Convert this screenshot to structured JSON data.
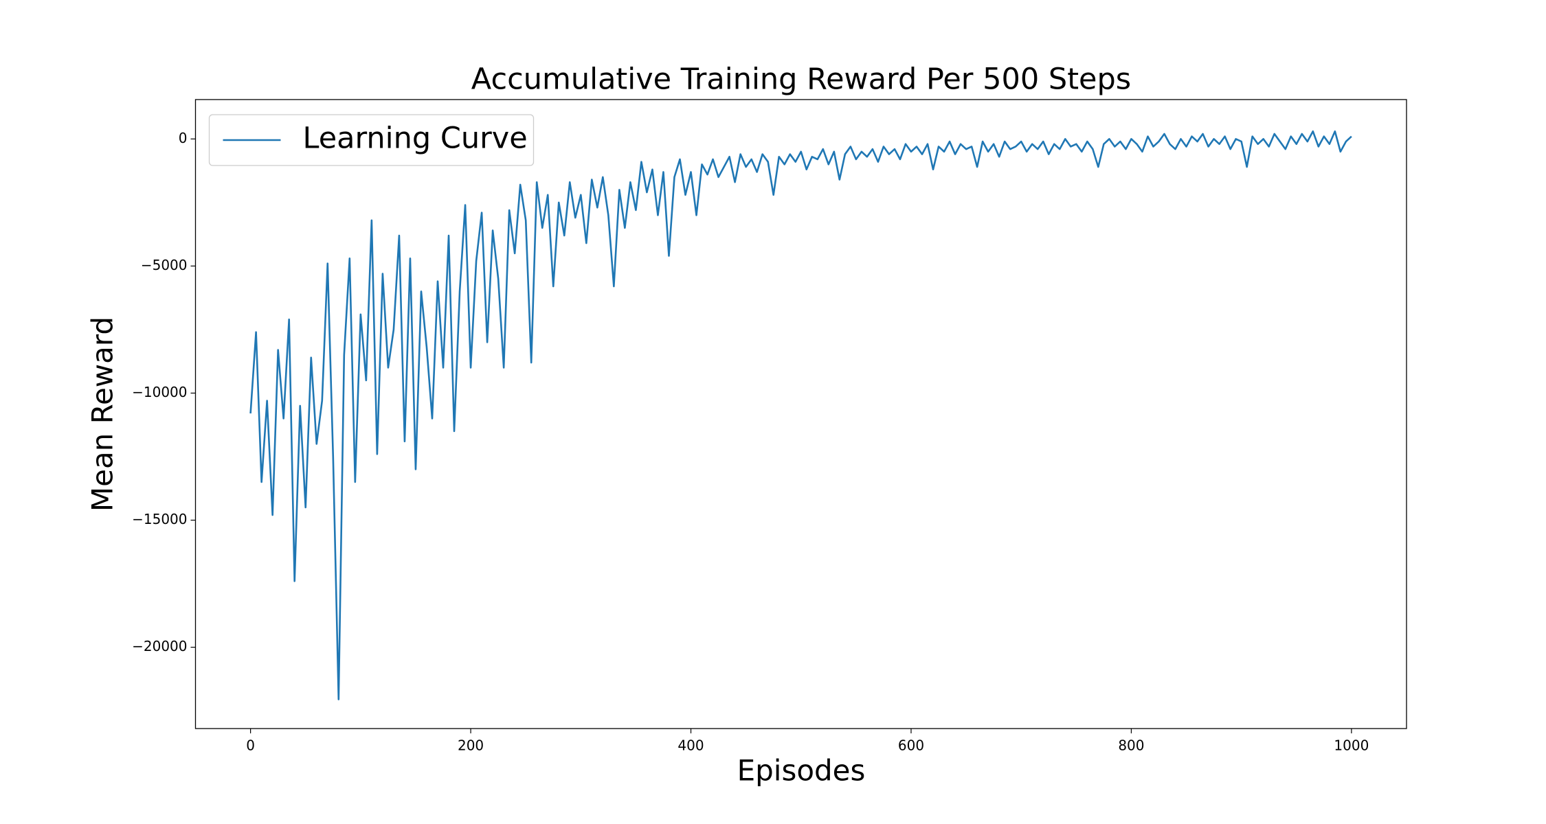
{
  "chart_data": {
    "type": "line",
    "title": "Accumulative Training Reward Per 500 Steps",
    "x_label": "Episodes",
    "y_label": "Mean Reward",
    "x": [
      0,
      5,
      10,
      15,
      20,
      25,
      30,
      35,
      40,
      45,
      50,
      55,
      60,
      65,
      70,
      75,
      80,
      85,
      90,
      95,
      100,
      105,
      110,
      115,
      120,
      125,
      130,
      135,
      140,
      145,
      150,
      155,
      160,
      165,
      170,
      175,
      180,
      185,
      190,
      195,
      200,
      205,
      210,
      215,
      220,
      225,
      230,
      235,
      240,
      245,
      250,
      255,
      260,
      265,
      270,
      275,
      280,
      285,
      290,
      295,
      300,
      305,
      310,
      315,
      320,
      325,
      330,
      335,
      340,
      345,
      350,
      355,
      360,
      365,
      370,
      375,
      380,
      385,
      390,
      395,
      400,
      405,
      410,
      415,
      420,
      425,
      430,
      435,
      440,
      445,
      450,
      455,
      460,
      465,
      470,
      475,
      480,
      485,
      490,
      495,
      500,
      505,
      510,
      515,
      520,
      525,
      530,
      535,
      540,
      545,
      550,
      555,
      560,
      565,
      570,
      575,
      580,
      585,
      590,
      595,
      600,
      605,
      610,
      615,
      620,
      625,
      630,
      635,
      640,
      645,
      650,
      655,
      660,
      665,
      670,
      675,
      680,
      685,
      690,
      695,
      700,
      705,
      710,
      715,
      720,
      725,
      730,
      735,
      740,
      745,
      750,
      755,
      760,
      765,
      770,
      775,
      780,
      785,
      790,
      795,
      800,
      805,
      810,
      815,
      820,
      825,
      830,
      835,
      840,
      845,
      850,
      855,
      860,
      865,
      870,
      875,
      880,
      885,
      890,
      895,
      900,
      905,
      910,
      915,
      920,
      925,
      930,
      935,
      940,
      945,
      950,
      955,
      960,
      965,
      970,
      975,
      980,
      985,
      990,
      995,
      1000
    ],
    "series": [
      {
        "name": "Learning Curve",
        "color": "#1f77b4",
        "values": [
          -10800,
          -7600,
          -13500,
          -10300,
          -14800,
          -8300,
          -11000,
          -7100,
          -17400,
          -10500,
          -14500,
          -8600,
          -12000,
          -10300,
          -4900,
          -12500,
          -22050,
          -8500,
          -4700,
          -13500,
          -6900,
          -9500,
          -3200,
          -12400,
          -5300,
          -9000,
          -7500,
          -3800,
          -11900,
          -4700,
          -13000,
          -6000,
          -8200,
          -11000,
          -5600,
          -9000,
          -3800,
          -11500,
          -6000,
          -2600,
          -9000,
          -4800,
          -2900,
          -8000,
          -3600,
          -5500,
          -9000,
          -2800,
          -4500,
          -1800,
          -3200,
          -8800,
          -1700,
          -3500,
          -2200,
          -5800,
          -2500,
          -3800,
          -1700,
          -3100,
          -2200,
          -4100,
          -1600,
          -2700,
          -1500,
          -3000,
          -5800,
          -2000,
          -3500,
          -1700,
          -2800,
          -900,
          -2100,
          -1200,
          -3000,
          -1300,
          -4600,
          -1500,
          -800,
          -2200,
          -1300,
          -3000,
          -1000,
          -1400,
          -800,
          -1500,
          -1100,
          -700,
          -1700,
          -600,
          -1100,
          -800,
          -1300,
          -600,
          -900,
          -2200,
          -700,
          -1000,
          -600,
          -900,
          -500,
          -1200,
          -700,
          -800,
          -400,
          -1000,
          -500,
          -1600,
          -600,
          -300,
          -800,
          -500,
          -700,
          -400,
          -900,
          -300,
          -600,
          -400,
          -800,
          -200,
          -500,
          -300,
          -600,
          -200,
          -1200,
          -300,
          -500,
          -100,
          -600,
          -200,
          -400,
          -300,
          -1100,
          -100,
          -500,
          -200,
          -700,
          -100,
          -400,
          -300,
          -100,
          -500,
          -200,
          -400,
          -100,
          -600,
          -200,
          -400,
          0,
          -300,
          -200,
          -500,
          -100,
          -400,
          -1100,
          -200,
          0,
          -300,
          -100,
          -400,
          0,
          -200,
          -500,
          100,
          -300,
          -100,
          200,
          -200,
          -400,
          0,
          -300,
          100,
          -100,
          200,
          -300,
          0,
          -200,
          100,
          -400,
          0,
          -100,
          -1100,
          100,
          -200,
          0,
          -300,
          200,
          -100,
          -400,
          100,
          -200,
          200,
          -100,
          300,
          -300,
          100,
          -200,
          300,
          -500,
          -100,
          100
        ]
      }
    ],
    "xlim": [
      -50,
      1050
    ],
    "ylim": [
      -23200,
      1550
    ],
    "xticks": [
      0,
      200,
      400,
      600,
      800,
      1000
    ],
    "yticks": [
      {
        "value": -20000,
        "label": "−20000"
      },
      {
        "value": -15000,
        "label": "−15000"
      },
      {
        "value": -10000,
        "label": "−10000"
      },
      {
        "value": -5000,
        "label": "−5000"
      },
      0
    ],
    "legend": "upper left"
  }
}
